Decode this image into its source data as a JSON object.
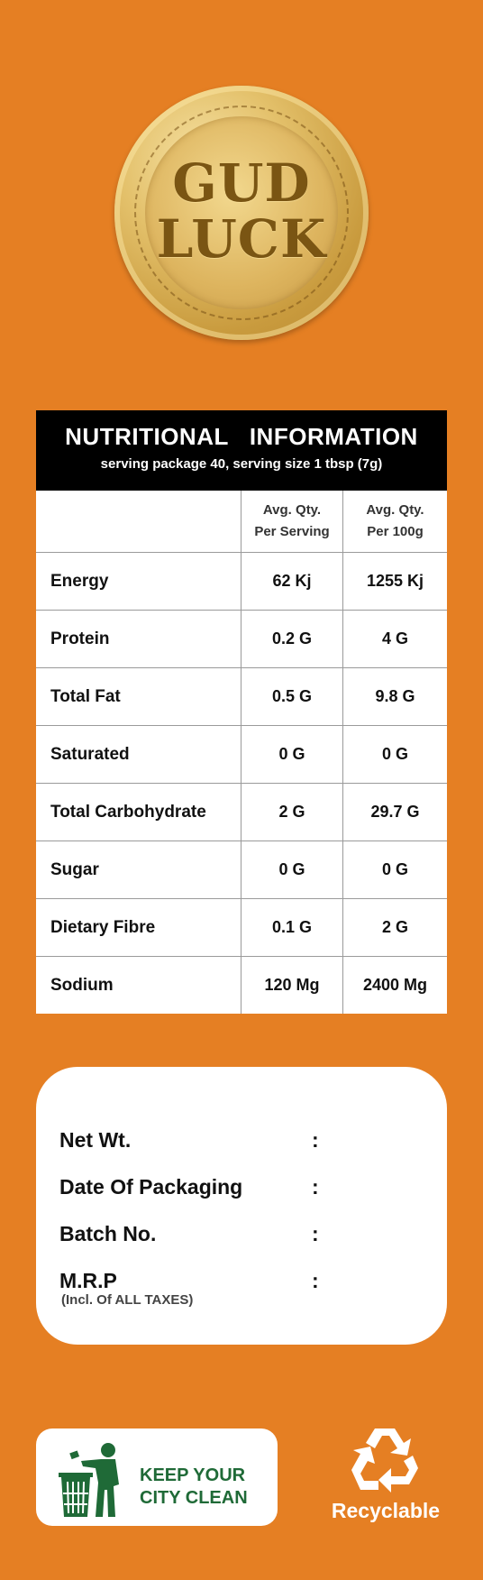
{
  "logo": {
    "line1": "GUD",
    "line2": "LUCK"
  },
  "nutrition": {
    "title": "NUTRITIONAL  INFORMATION",
    "subtitle": "serving package 40, serving size 1 tbsp (7g)",
    "col1": {
      "line1": "Avg. Qty.",
      "line2": "Per Serving"
    },
    "col2": {
      "line1": "Avg. Qty.",
      "line2": "Per 100g"
    },
    "rows": [
      {
        "label": "Energy",
        "per_serving": "62 Kj",
        "per_100g": "1255 Kj"
      },
      {
        "label": "Protein",
        "per_serving": "0.2 G",
        "per_100g": "4 G"
      },
      {
        "label": "Total Fat",
        "per_serving": "0.5 G",
        "per_100g": "9.8 G"
      },
      {
        "label": "Saturated",
        "per_serving": "0 G",
        "per_100g": "0 G"
      },
      {
        "label": "Total Carbohydrate",
        "per_serving": "2 G",
        "per_100g": "29.7 G"
      },
      {
        "label": "Sugar",
        "per_serving": "0 G",
        "per_100g": "0 G"
      },
      {
        "label": "Dietary Fibre",
        "per_serving": "0.1 G",
        "per_100g": "2 G"
      },
      {
        "label": "Sodium",
        "per_serving": "120 Mg",
        "per_100g": "2400 Mg"
      }
    ]
  },
  "details": {
    "net_wt": "Net Wt.",
    "date_of_packaging": "Date Of Packaging",
    "batch_no": "Batch No.",
    "mrp": "M.R.P",
    "mrp_note": "(Incl. Of ALL TAXES)",
    "colon": ":"
  },
  "footer": {
    "clean_line1": "KEEP YOUR",
    "clean_line2": "CITY CLEAN",
    "recyclable": "Recyclable",
    "icons": [
      "tidyman-icon",
      "recycle-icon"
    ]
  },
  "colors": {
    "background": "#e57f23",
    "header": "#000000",
    "clean_green": "#1f6a37",
    "gold": "#c99b3e"
  }
}
